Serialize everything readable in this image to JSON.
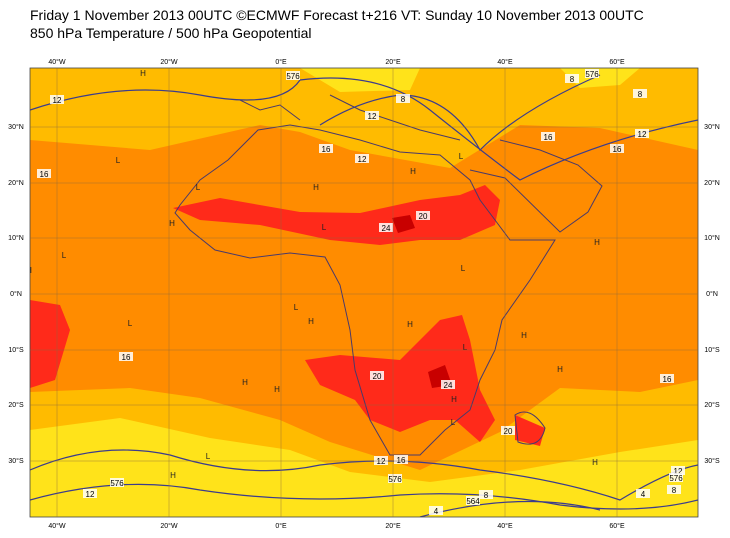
{
  "header": {
    "line1": "Friday 1 November 2013 00UTC ©ECMWF Forecast t+216 VT: Sunday 10 November 2013 00UTC",
    "line2": "850 hPa Temperature / 500 hPa Geopotential"
  },
  "map": {
    "lon_labels": [
      "40°W",
      "20°W",
      "0°E",
      "20°E",
      "40°E",
      "60°E"
    ],
    "lat_labels": [
      "30°N",
      "20°N",
      "10°N",
      "0°N",
      "10°S",
      "20°S",
      "30°S"
    ],
    "contour_labels": [
      "576",
      "12",
      "8",
      "12",
      "8",
      "576",
      "8",
      "16",
      "12",
      "16",
      "16",
      "12",
      "16",
      "20",
      "24",
      "16",
      "20",
      "24",
      "16",
      "20",
      "12",
      "16",
      "576",
      "576",
      "12",
      "8",
      "564",
      "4",
      "12",
      "576",
      "8",
      "4"
    ],
    "pressure_marks": [
      "H",
      "H",
      "L",
      "L",
      "H",
      "H",
      "L",
      "L",
      "H",
      "H",
      "L",
      "H",
      "L",
      "L",
      "H",
      "H",
      "L",
      "H",
      "L",
      "H",
      "H",
      "H",
      "H",
      "L",
      "H",
      "H",
      "L"
    ]
  }
}
